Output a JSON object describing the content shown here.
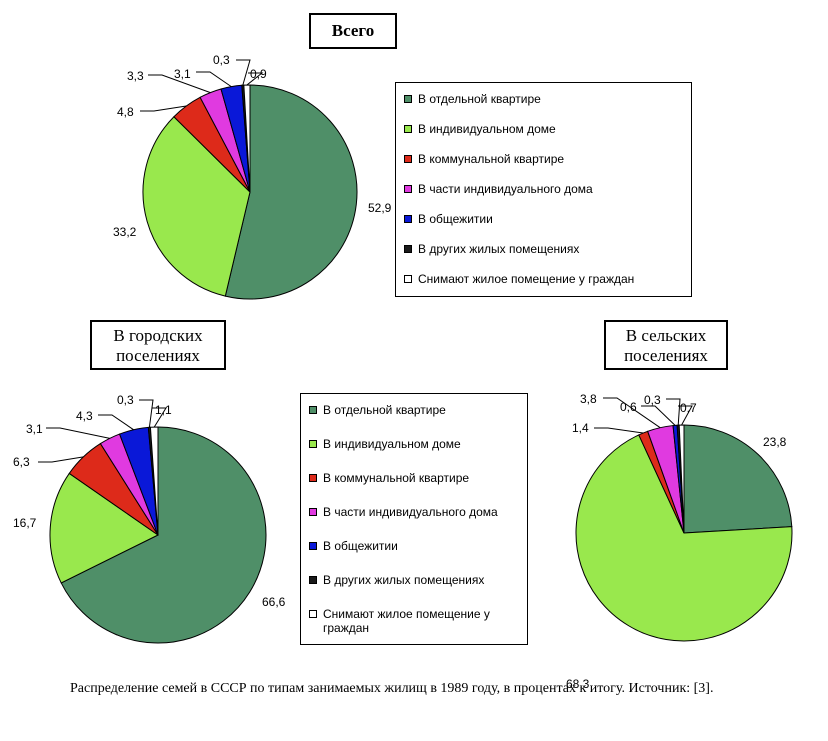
{
  "categories": [
    "В отдельной квартире",
    "В индивидуальном доме",
    "В коммунальной квартире",
    "В части индивидуального дома",
    "В общежитии",
    "В других жилых помещениях",
    "Снимают жилое помещение у граждан"
  ],
  "colors": [
    "#4f8f68",
    "#99e84d",
    "#dd2a1a",
    "#e03ae0",
    "#0a18d8",
    "#1a1a1a",
    "#ffffff"
  ],
  "chart_data": [
    {
      "type": "pie",
      "title": "Всего",
      "values": [
        52.9,
        33.2,
        4.8,
        3.3,
        3.1,
        0.3,
        0.9
      ],
      "labels": [
        "52,9",
        "33,2",
        "4,8",
        "3,3",
        "3,1",
        "0,3",
        "0,9"
      ]
    },
    {
      "type": "pie",
      "title": "В городских поселениях",
      "values": [
        66.6,
        16.7,
        6.3,
        3.1,
        4.3,
        0.3,
        1.1
      ],
      "labels": [
        "66,6",
        "16,7",
        "6,3",
        "3,1",
        "4,3",
        "0,3",
        "1,1"
      ]
    },
    {
      "type": "pie",
      "title": "В сельских поселениях",
      "values": [
        23.8,
        68.3,
        1.4,
        3.8,
        0.6,
        0.3,
        0.7
      ],
      "labels": [
        "23,8",
        "68,3",
        "1,4",
        "3,8",
        "0,6",
        "0,3",
        "0,7"
      ]
    }
  ],
  "legend_total": [
    "В отдельной квартире",
    "В индивидуальном доме",
    "В коммунальной квартире",
    "В части индивидуального дома",
    "В общежитии",
    "В других жилых помещениях",
    "Снимают жилое помещение у граждан"
  ],
  "legend_urban": [
    "В отдельной квартире",
    "В индивидуальном доме",
    "В коммунальной квартире",
    "В части индивидуального дома",
    "В общежитии",
    "В других жилых помещениях",
    "Снимают жилое помещение у граждан"
  ],
  "caption": "Распределение семей в СССР по типам занимаемых жилищ в 1989 году, в процентах к итогу. Источник: [3]."
}
